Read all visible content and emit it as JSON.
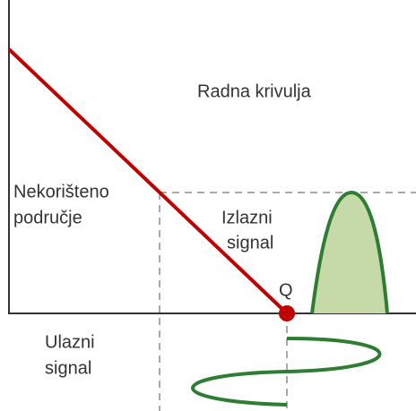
{
  "labels": {
    "load_line": "Radna krivulja",
    "unused_1": "Nekorišteno",
    "unused_2": "područje",
    "output_1": "Izlazni",
    "output_2": "signal",
    "q_point": "Q",
    "input_1": "Ulazni",
    "input_2": "signal"
  }
}
